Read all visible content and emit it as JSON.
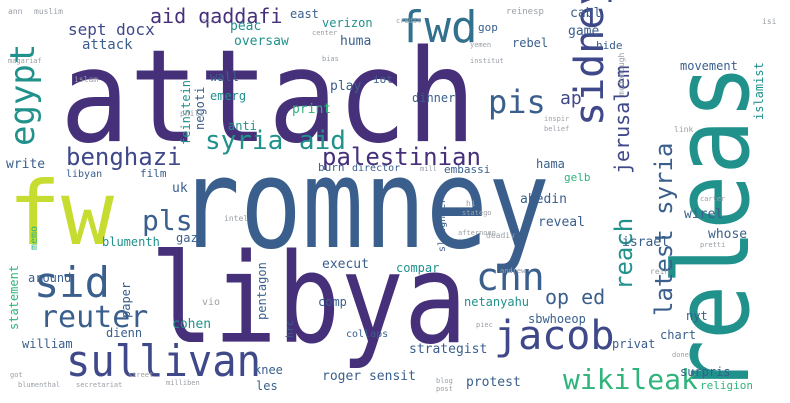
{
  "palette": {
    "purple": "#46307a",
    "indigo": "#3f4889",
    "slate": "#3a5f8c",
    "blue": "#31708e",
    "teal": "#21918c",
    "green": "#2fb47c",
    "lime": "#c7dc30",
    "yellow": "#dde318",
    "grey": "#9aa0a6"
  },
  "words": [
    {
      "text": "attach",
      "color": "#46307a"
    },
    {
      "text": "romney",
      "color": "#3a5f8c"
    },
    {
      "text": "libya",
      "color": "#46307a"
    },
    {
      "text": "releas",
      "color": "#21918c"
    },
    {
      "text": "fw",
      "color": "#c7dc30"
    },
    {
      "text": "sullivan",
      "color": "#3f4889"
    },
    {
      "text": "jacob",
      "color": "#3f4889"
    },
    {
      "text": "sid",
      "color": "#3a5f8c"
    },
    {
      "text": "cnn",
      "color": "#3a5f8c"
    },
    {
      "text": "sidney",
      "color": "#3f4889"
    },
    {
      "text": "fwd",
      "color": "#31708e"
    },
    {
      "text": "egypt",
      "color": "#21918c"
    },
    {
      "text": "pis",
      "color": "#3a5f8c"
    },
    {
      "text": "benghazi",
      "color": "#3f4889"
    },
    {
      "text": "syria aid",
      "color": "#21918c"
    },
    {
      "text": "palestinian",
      "color": "#46307a"
    },
    {
      "text": "reuter",
      "color": "#3a5f8c"
    },
    {
      "text": "pls",
      "color": "#3a5f8c"
    },
    {
      "text": "wikileak",
      "color": "#2fb47c"
    },
    {
      "text": "latest syria",
      "color": "#3a5f8c"
    },
    {
      "text": "reach",
      "color": "#21918c"
    },
    {
      "text": "jerusalem",
      "color": "#3f4889"
    },
    {
      "text": "aid qaddafi",
      "color": "#46307a"
    },
    {
      "text": "sept docx",
      "color": "#3f4889"
    },
    {
      "text": "op ed",
      "color": "#3a5f8c"
    },
    {
      "text": "ap",
      "color": "#3f4889"
    },
    {
      "text": "game",
      "color": "#3a5f8c"
    },
    {
      "text": "cabl",
      "color": "#3a5f8c"
    },
    {
      "text": "rebel",
      "color": "#3a5f8c"
    },
    {
      "text": "verizon",
      "color": "#21918c"
    },
    {
      "text": "huma",
      "color": "#3a5f8c"
    },
    {
      "text": "east",
      "color": "#3a5f8c"
    },
    {
      "text": "gop",
      "color": "#3a5f8c"
    },
    {
      "text": "attack",
      "color": "#3a5f8c"
    },
    {
      "text": "oversaw",
      "color": "#21918c"
    },
    {
      "text": "peac",
      "color": "#21918c"
    },
    {
      "text": "wall",
      "color": "#3a5f8c"
    },
    {
      "text": "play",
      "color": "#3a5f8c"
    },
    {
      "text": "iot",
      "color": "#3a5f8c"
    },
    {
      "text": "emerg",
      "color": "#21918c"
    },
    {
      "text": "dinner",
      "color": "#3a5f8c"
    },
    {
      "text": "print",
      "color": "#2fb47c"
    },
    {
      "text": "anti",
      "color": "#21918c"
    },
    {
      "text": "feinstein",
      "color": "#21918c"
    },
    {
      "text": "negoti",
      "color": "#3a5f8c"
    },
    {
      "text": "movement",
      "color": "#3a5f8c"
    },
    {
      "text": "islamist",
      "color": "#21918c"
    },
    {
      "text": "hide",
      "color": "#3a5f8c"
    },
    {
      "text": "hama",
      "color": "#3a5f8c"
    },
    {
      "text": "abedin",
      "color": "#3a5f8c"
    },
    {
      "text": "gelb",
      "color": "#2fb47c"
    },
    {
      "text": "wirel",
      "color": "#3a5f8c"
    },
    {
      "text": "write",
      "color": "#3a5f8c"
    },
    {
      "text": "uk",
      "color": "#3a5f8c"
    },
    {
      "text": "memo",
      "color": "#2fb47c"
    },
    {
      "text": "gaza",
      "color": "#3a5f8c"
    },
    {
      "text": "blumenth",
      "color": "#21918c"
    },
    {
      "text": "statement",
      "color": "#2fb47c"
    },
    {
      "text": "around",
      "color": "#3a5f8c"
    },
    {
      "text": "israel",
      "color": "#3a5f8c"
    },
    {
      "text": "whose",
      "color": "#3a5f8c"
    },
    {
      "text": "reveal",
      "color": "#3a5f8c"
    },
    {
      "text": "execut",
      "color": "#3a5f8c"
    },
    {
      "text": "compar",
      "color": "#21918c"
    },
    {
      "text": "netanyahu",
      "color": "#21918c"
    },
    {
      "text": "pentagon",
      "color": "#3a5f8c"
    },
    {
      "text": "comp",
      "color": "#3a5f8c"
    },
    {
      "text": "paper",
      "color": "#3a5f8c"
    },
    {
      "text": "cohen",
      "color": "#21918c"
    },
    {
      "text": "dienn",
      "color": "#3a5f8c"
    },
    {
      "text": "william",
      "color": "#3a5f8c"
    },
    {
      "text": "sbwhoeop",
      "color": "#3a5f8c"
    },
    {
      "text": "privat",
      "color": "#3a5f8c"
    },
    {
      "text": "nyt",
      "color": "#3a5f8c"
    },
    {
      "text": "chart",
      "color": "#3a5f8c"
    },
    {
      "text": "strategist",
      "color": "#3a5f8c"
    },
    {
      "text": "knee",
      "color": "#3a5f8c"
    },
    {
      "text": "les",
      "color": "#3a5f8c"
    },
    {
      "text": "roger sensit",
      "color": "#3a5f8c"
    },
    {
      "text": "protest",
      "color": "#3a5f8c"
    },
    {
      "text": "surpris",
      "color": "#3a5f8c"
    },
    {
      "text": "religion",
      "color": "#2fb47c"
    },
    {
      "text": "hrc",
      "color": "#3a5f8c"
    },
    {
      "text": "collaps",
      "color": "#3a5f8c"
    },
    {
      "text": "slaughter",
      "color": "#3a5f8c"
    },
    {
      "text": "embassi",
      "color": "#3a5f8c"
    },
    {
      "text": "burn",
      "color": "#3a5f8c"
    },
    {
      "text": "film",
      "color": "#3a5f8c"
    },
    {
      "text": "libyan",
      "color": "#3a5f8c"
    },
    {
      "text": "director",
      "color": "#3a5f8c"
    },
    {
      "text": "muslim",
      "color": "#9aa0a6"
    },
    {
      "text": "ann",
      "color": "#9aa0a6"
    },
    {
      "text": "islam",
      "color": "#9aa0a6"
    },
    {
      "text": "phili",
      "color": "#9aa0a6"
    },
    {
      "text": "intel",
      "color": "#9aa0a6"
    },
    {
      "text": "vio",
      "color": "#9aa0a6"
    },
    {
      "text": "mcdonough",
      "color": "#9aa0a6"
    },
    {
      "text": "reinesp",
      "color": "#9aa0a6"
    },
    {
      "text": "link",
      "color": "#9aa0a6"
    },
    {
      "text": "isi",
      "color": "#9aa0a6"
    },
    {
      "text": "center",
      "color": "#9aa0a6"
    },
    {
      "text": "yemen",
      "color": "#9aa0a6"
    },
    {
      "text": "rein",
      "color": "#9aa0a6"
    },
    {
      "text": "pretti",
      "color": "#9aa0a6"
    },
    {
      "text": "done",
      "color": "#9aa0a6"
    },
    {
      "text": "carter",
      "color": "#9aa0a6"
    },
    {
      "text": "deadiv",
      "color": "#9aa0a6"
    },
    {
      "text": "afternoon",
      "color": "#9aa0a6"
    },
    {
      "text": "inspir",
      "color": "#9aa0a6"
    },
    {
      "text": "belief",
      "color": "#9aa0a6"
    },
    {
      "text": "statego",
      "color": "#9aa0a6"
    },
    {
      "text": "andrew",
      "color": "#9aa0a6"
    },
    {
      "text": "blog",
      "color": "#9aa0a6"
    },
    {
      "text": "post",
      "color": "#9aa0a6"
    },
    {
      "text": "street",
      "color": "#9aa0a6"
    },
    {
      "text": "got",
      "color": "#9aa0a6"
    },
    {
      "text": "secretariat",
      "color": "#9aa0a6"
    },
    {
      "text": "milliben",
      "color": "#9aa0a6"
    },
    {
      "text": "blumenthal",
      "color": "#9aa0a6"
    },
    {
      "text": "piec",
      "color": "#9aa0a6"
    },
    {
      "text": "mill",
      "color": "#9aa0a6"
    },
    {
      "text": "hi",
      "color": "#9aa0a6"
    },
    {
      "text": "magariaf",
      "color": "#9aa0a6"
    },
    {
      "text": "nic",
      "color": "#9aa0a6"
    },
    {
      "text": "bias",
      "color": "#9aa0a6"
    },
    {
      "text": "credit",
      "color": "#9aa0a6"
    },
    {
      "text": "institut",
      "color": "#9aa0a6"
    }
  ]
}
